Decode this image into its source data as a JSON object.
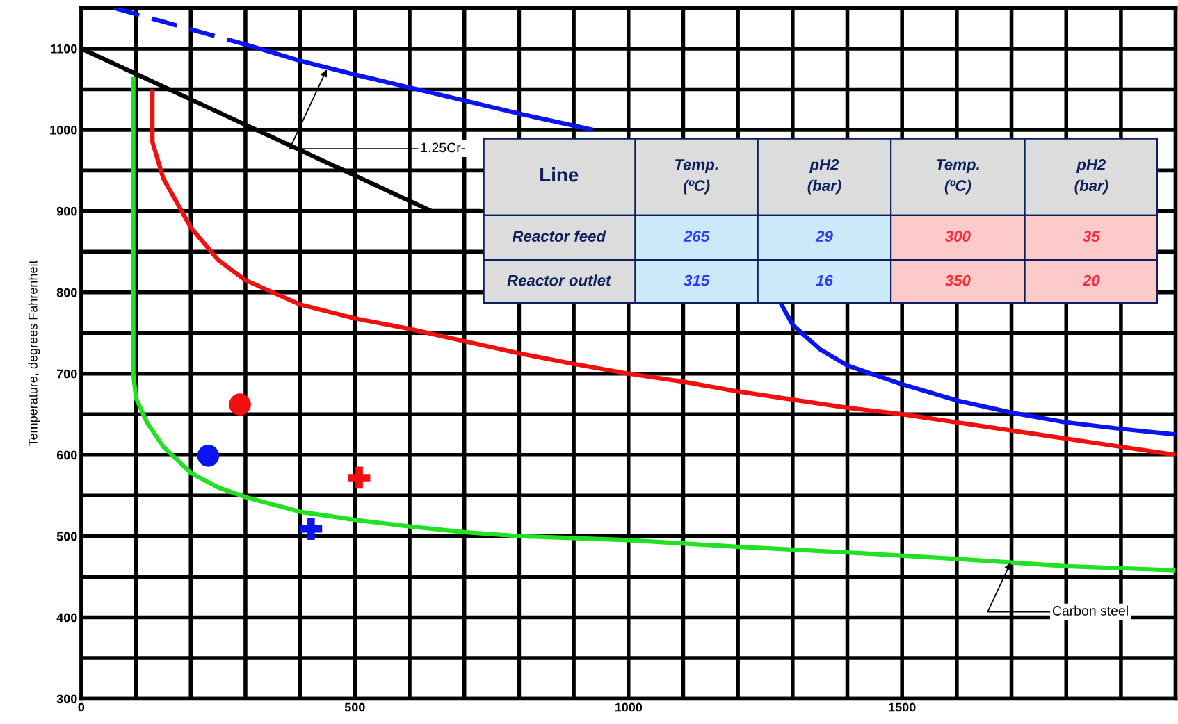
{
  "chart_data": [
    {
      "type": "line",
      "ylabel": "Temperature, degrees Fahrenheit",
      "xlim": [
        0,
        2000
      ],
      "ylim": [
        300,
        1150
      ],
      "xticks": [
        0,
        {
          "value": 100,
          "label": null
        },
        {
          "value": 200,
          "label": null
        },
        {
          "value": 300,
          "label": null
        },
        {
          "value": 400,
          "label": null
        },
        500,
        {
          "value": 600,
          "label": null
        },
        {
          "value": 700,
          "label": null
        },
        {
          "value": 800,
          "label": null
        },
        {
          "value": 900,
          "label": null
        },
        1000,
        {
          "value": 1100,
          "label": null
        },
        {
          "value": 1200,
          "label": null
        },
        {
          "value": 1300,
          "label": null
        },
        {
          "value": 1400,
          "label": null
        },
        1500,
        {
          "value": 1600,
          "label": null
        },
        {
          "value": 1700,
          "label": null
        },
        {
          "value": 1800,
          "label": null
        },
        {
          "value": 1900,
          "label": null
        },
        {
          "value": 2000,
          "label": null
        }
      ],
      "yticks": [
        300,
        {
          "value": 350,
          "label": null
        },
        400,
        {
          "value": 450,
          "label": null
        },
        500,
        {
          "value": 550,
          "label": null
        },
        600,
        {
          "value": 650,
          "label": null
        },
        700,
        {
          "value": 750,
          "label": null
        },
        800,
        {
          "value": 850,
          "label": null
        },
        900,
        {
          "value": 950,
          "label": null
        },
        1000,
        {
          "value": 1050,
          "label": null
        },
        1100,
        {
          "value": 1150,
          "label": null
        }
      ],
      "grid": true,
      "legend": false,
      "series": [
        {
          "type": "line",
          "color": "#0a14f0",
          "line_style": "dashed",
          "x": [
            60,
            150,
            300
          ],
          "values": [
            1150,
            1133,
            1105
          ]
        },
        {
          "type": "line",
          "color": "#0a14f0",
          "line_style": "solid",
          "x": [
            300,
            400,
            500,
            600,
            700,
            800,
            935,
            1100,
            1278,
            1300,
            1350,
            1400,
            1500,
            1600,
            1700,
            1800,
            1900,
            2000
          ],
          "values": [
            1105,
            1085,
            1068,
            1052,
            1036,
            1020,
            1000,
            null,
            787,
            760,
            730,
            710,
            687,
            667,
            652,
            640,
            632,
            625
          ]
        },
        {
          "type": "line",
          "color": "#000000",
          "line_style": "solid",
          "x": [
            0,
            640,
            730
          ],
          "values": [
            1100,
            900,
            900
          ]
        },
        {
          "type": "line",
          "color": "#f01010",
          "line_style": "solid",
          "x": [
            130,
            130,
            150,
            200,
            250,
            300,
            400,
            500,
            600,
            700,
            800,
            900,
            1000,
            1100,
            1200,
            1300,
            1400,
            1500,
            1600,
            1700,
            1800,
            1900,
            2000
          ],
          "values": [
            1050,
            985,
            940,
            880,
            840,
            815,
            785,
            768,
            755,
            740,
            725,
            712,
            700,
            690,
            678,
            668,
            658,
            650,
            640,
            630,
            620,
            610,
            600
          ]
        },
        {
          "type": "line",
          "color": "#22e022",
          "line_style": "solid",
          "x": [
            95,
            95,
            100,
            120,
            150,
            200,
            250,
            300,
            400,
            500,
            600,
            700,
            800,
            1000,
            1200,
            1400,
            1600,
            1800,
            2000
          ],
          "values": [
            1065,
            700,
            670,
            640,
            610,
            578,
            560,
            548,
            530,
            520,
            512,
            505,
            500,
            495,
            487,
            480,
            472,
            463,
            458
          ]
        },
        {
          "type": "scatter",
          "color": "#0a14f0",
          "marker": "circle",
          "x": [
            232
          ],
          "values": [
            599
          ]
        },
        {
          "type": "scatter",
          "color": "#0a14f0",
          "marker": "cross",
          "x": [
            420
          ],
          "values": [
            509
          ]
        },
        {
          "type": "scatter",
          "color": "#f01010",
          "marker": "circle",
          "x": [
            290
          ],
          "values": [
            662
          ]
        },
        {
          "type": "scatter",
          "color": "#f01010",
          "marker": "cross",
          "x": [
            508
          ],
          "values": [
            572
          ]
        }
      ],
      "annotations": [
        {
          "text": "1.25Cr-",
          "x": 450,
          "y": 1076.5
        },
        {
          "text": "Carbon steel",
          "x": 1700,
          "y": 469.75
        }
      ]
    },
    {
      "type": "other",
      "annotations": [
        "Line",
        "Temp.\n(ºC)",
        "pH2\n(bar)",
        "Temp.\n(ºC)",
        "pH2\n(bar)",
        "Reactor feed",
        "265",
        "29",
        "300",
        "35",
        "Reactor outlet",
        "315",
        "16",
        "350",
        "20"
      ],
      "colors": [
        "#dcdcdc",
        "#dcdcdc",
        "#dcdcdc",
        "#dcdcdc",
        "#dcdcdc",
        "#dcdcdc",
        "#cce9fb",
        "#cce9fb",
        "#fdcaca",
        "#fdcaca",
        "#dcdcdc",
        "#cce9fb",
        "#cce9fb",
        "#fdcaca",
        "#fdcaca"
      ]
    }
  ]
}
